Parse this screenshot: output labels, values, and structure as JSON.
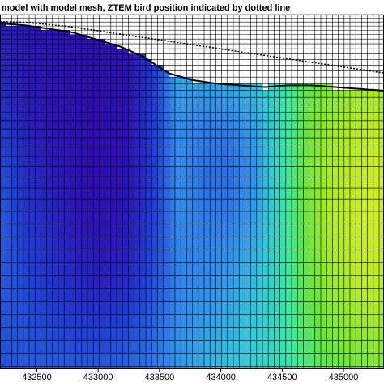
{
  "chart_data": {
    "type": "heatmap",
    "title": "model with model mesh, ZTEM bird position indicated by dotted line",
    "xlabel": "",
    "ylabel": "",
    "xlim": [
      432200,
      435330
    ],
    "x_ticks": [
      {
        "value": 432500,
        "label": "432500"
      },
      {
        "value": 433000,
        "label": "433000"
      },
      {
        "value": 433500,
        "label": "433500"
      },
      {
        "value": 434000,
        "label": "434000"
      },
      {
        "value": 434500,
        "label": "434500"
      },
      {
        "value": 435000,
        "label": "435000"
      }
    ],
    "depth_range": [
      0,
      1
    ],
    "grid": true,
    "colormap": [
      "#3300aa",
      "#1f3fd6",
      "#2f88ee",
      "#33c8dd",
      "#3ee89c",
      "#66e63a",
      "#b4ec24",
      "#e8f01c"
    ],
    "property_grid": [
      [
        0.06,
        0.06,
        0.05,
        0.05,
        0.05,
        0.04,
        0.1,
        0.4,
        0.45,
        0.48,
        0.5,
        0.55,
        0.6,
        0.68,
        0.72,
        0.74
      ],
      [
        0.08,
        0.06,
        0.05,
        0.04,
        0.04,
        0.04,
        0.12,
        0.38,
        0.42,
        0.44,
        0.46,
        0.52,
        0.66,
        0.74,
        0.78,
        0.8
      ],
      [
        0.1,
        0.06,
        0.04,
        0.04,
        0.03,
        0.04,
        0.14,
        0.34,
        0.32,
        0.34,
        0.4,
        0.52,
        0.7,
        0.78,
        0.82,
        0.84
      ],
      [
        0.14,
        0.08,
        0.05,
        0.04,
        0.03,
        0.04,
        0.14,
        0.3,
        0.26,
        0.26,
        0.34,
        0.52,
        0.72,
        0.82,
        0.86,
        0.9
      ],
      [
        0.18,
        0.1,
        0.06,
        0.04,
        0.03,
        0.04,
        0.14,
        0.3,
        0.24,
        0.24,
        0.32,
        0.52,
        0.74,
        0.84,
        0.9,
        0.94
      ],
      [
        0.2,
        0.12,
        0.08,
        0.05,
        0.04,
        0.05,
        0.14,
        0.3,
        0.26,
        0.26,
        0.34,
        0.52,
        0.74,
        0.86,
        0.92,
        0.95
      ],
      [
        0.2,
        0.14,
        0.1,
        0.07,
        0.05,
        0.07,
        0.16,
        0.28,
        0.28,
        0.3,
        0.38,
        0.52,
        0.72,
        0.84,
        0.9,
        0.92
      ],
      [
        0.2,
        0.16,
        0.12,
        0.1,
        0.08,
        0.1,
        0.18,
        0.28,
        0.3,
        0.34,
        0.42,
        0.52,
        0.7,
        0.8,
        0.86,
        0.88
      ],
      [
        0.18,
        0.18,
        0.16,
        0.14,
        0.14,
        0.16,
        0.22,
        0.3,
        0.34,
        0.38,
        0.44,
        0.52,
        0.66,
        0.76,
        0.8,
        0.82
      ],
      [
        0.18,
        0.2,
        0.2,
        0.2,
        0.2,
        0.22,
        0.26,
        0.32,
        0.38,
        0.42,
        0.46,
        0.52,
        0.62,
        0.7,
        0.74,
        0.76
      ]
    ],
    "topography_depth": [
      0.025,
      0.03,
      0.04,
      0.05,
      0.07,
      0.09,
      0.12,
      0.165,
      0.185,
      0.195,
      0.2,
      0.205,
      0.2,
      0.2,
      0.205,
      0.21,
      0.215
    ],
    "bird_path_depth": [
      0.02,
      0.022,
      0.028,
      0.035,
      0.045,
      0.055,
      0.065,
      0.075,
      0.085,
      0.095,
      0.105,
      0.115,
      0.125,
      0.135,
      0.145,
      0.155,
      0.165
    ]
  }
}
